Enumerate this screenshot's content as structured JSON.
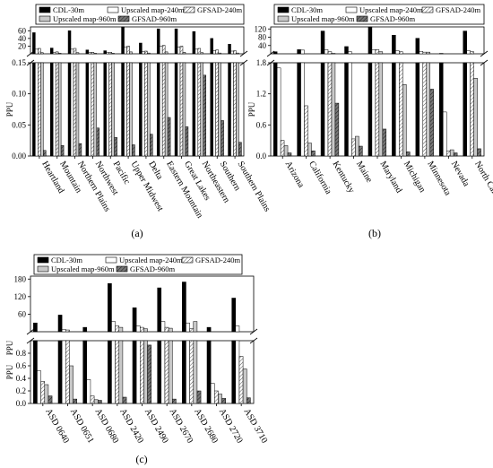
{
  "figure": {
    "charts": [
      {
        "caption": "(a)"
      },
      {
        "caption": "(b)"
      },
      {
        "caption": "(c)"
      }
    ]
  },
  "colors": {
    "cdl": "#000000",
    "upscaled240": "#ffffff",
    "gfsad240": "#ffffff",
    "upscaled960": "#c8c8c8",
    "gfsad960": "#505050",
    "hatch": "#444444"
  },
  "chart_data": [
    {
      "type": "bar",
      "id": "a",
      "caption": "(a)",
      "ylabel": "PPU",
      "legend_position": "top",
      "series": [
        {
          "name": "CDL-30m",
          "pattern": "solid-black",
          "values": [
            55,
            15,
            60,
            10,
            8,
            70,
            28,
            65,
            65,
            58,
            40,
            25
          ]
        },
        {
          "name": "Upscaled map-240m",
          "pattern": "white",
          "values": [
            12,
            4,
            12,
            3,
            3,
            18,
            6,
            20,
            18,
            12,
            8,
            7
          ]
        },
        {
          "name": "GFSAD-240m",
          "pattern": "hatch",
          "values": [
            14,
            5,
            14,
            4,
            4,
            20,
            7,
            22,
            20,
            14,
            10,
            8
          ]
        },
        {
          "name": "Upscaled map-960m",
          "pattern": "light-gray",
          "values": [
            3,
            1.5,
            3,
            1.2,
            1.2,
            5,
            2,
            5,
            4,
            3,
            2,
            2
          ]
        },
        {
          "name": "GFSAD-960m",
          "pattern": "hatch-dark",
          "values": [
            0.009,
            0.017,
            0.02,
            0.045,
            0.03,
            0.018,
            0.035,
            0.062,
            0.047,
            0.13,
            0.057,
            0.022
          ]
        }
      ],
      "categories": [
        "Heartland",
        "Mountain",
        "Northern Plains",
        "Northwest",
        "Pacific",
        "Upper Midwest",
        "Delta",
        "Eastern Mountain",
        "Great Lakes",
        "Northeastern",
        "Southern",
        "Southern Plains"
      ],
      "axis_lower": {
        "range": [
          0,
          0.15
        ],
        "ticks": [
          "0.00",
          "0.05",
          "0.10",
          "0.15"
        ]
      },
      "axis_upper": {
        "range": [
          0,
          70
        ],
        "ticks": [
          "20",
          "40",
          "60"
        ]
      }
    },
    {
      "type": "bar",
      "id": "b",
      "caption": "(b)",
      "ylabel": "PPU",
      "legend_position": "top",
      "series": [
        {
          "name": "CDL-30m",
          "pattern": "solid-black",
          "values": [
            10,
            20,
            110,
            35,
            130,
            90,
            75,
            2.0,
            110
          ]
        },
        {
          "name": "Upscaled map-240m",
          "pattern": "white",
          "values": [
            1.7,
            18,
            20,
            10,
            20,
            15,
            12,
            0.85,
            15
          ]
        },
        {
          "name": "GFSAD-240m",
          "pattern": "hatch",
          "values": [
            0.3,
            0.97,
            10,
            0.33,
            20,
            10,
            8,
            0.1,
            10
          ]
        },
        {
          "name": "Upscaled map-960m",
          "pattern": "light-gray",
          "values": [
            0.2,
            0.25,
            1.9,
            0.38,
            10,
            1.38,
            8,
            0.12,
            1.5
          ]
        },
        {
          "name": "GFSAD-960m",
          "pattern": "hatch-dark",
          "values": [
            0.06,
            0.1,
            1.02,
            0.19,
            0.52,
            0.08,
            1.29,
            0.06,
            0.14
          ]
        }
      ],
      "categories": [
        "Arizona",
        "California",
        "Kentucky",
        "Maine",
        "Maryland",
        "Michigan",
        "Minnesota",
        "Nevada",
        "North Carolina"
      ],
      "axis_lower": {
        "range": [
          0,
          1.8
        ],
        "ticks": [
          "0.0",
          "0.6",
          "1.2",
          "1.8"
        ]
      },
      "axis_upper": {
        "range": [
          0,
          130
        ],
        "ticks": [
          "40",
          "80",
          "120"
        ]
      }
    },
    {
      "type": "bar",
      "id": "c",
      "caption": "(c)",
      "ylabel": "PPU",
      "legend_position": "top",
      "series": [
        {
          "name": "CDL-30m",
          "pattern": "solid-black",
          "values": [
            30,
            57,
            15,
            165,
            82,
            150,
            170,
            15,
            115
          ]
        },
        {
          "name": "Upscaled map-240m",
          "pattern": "white",
          "values": [
            0.52,
            8,
            0.38,
            35,
            20,
            35,
            30,
            0.32,
            20
          ]
        },
        {
          "name": "GFSAD-240m",
          "pattern": "hatch",
          "values": [
            0.35,
            6,
            0.12,
            20,
            15,
            15,
            10,
            0.2,
            0.75
          ]
        },
        {
          "name": "Upscaled map-960m",
          "pattern": "light-gray",
          "values": [
            0.3,
            0.6,
            0.06,
            15,
            10,
            12,
            35,
            0.15,
            0.55
          ]
        },
        {
          "name": "GFSAD-960m",
          "pattern": "hatch-dark",
          "values": [
            0.12,
            0.07,
            0.05,
            0.1,
            0.93,
            0.07,
            0.2,
            0.08,
            0.09
          ]
        }
      ],
      "categories": [
        "ASD 0640",
        "ASD 0651",
        "ASD 0680",
        "ASD 2420",
        "ASD 2490",
        "ASD 2670",
        "ASD 2680",
        "ASD 2720",
        "ASD 3710"
      ],
      "axis_lower": {
        "range": [
          0,
          1.0
        ],
        "ticks": [
          "0.0",
          "0.2",
          "0.4",
          "0.6",
          "0.8"
        ]
      },
      "axis_upper": {
        "range": [
          0,
          190
        ],
        "ticks": [
          "60",
          "120",
          "180"
        ]
      },
      "lower_break_label": "PPU"
    }
  ]
}
